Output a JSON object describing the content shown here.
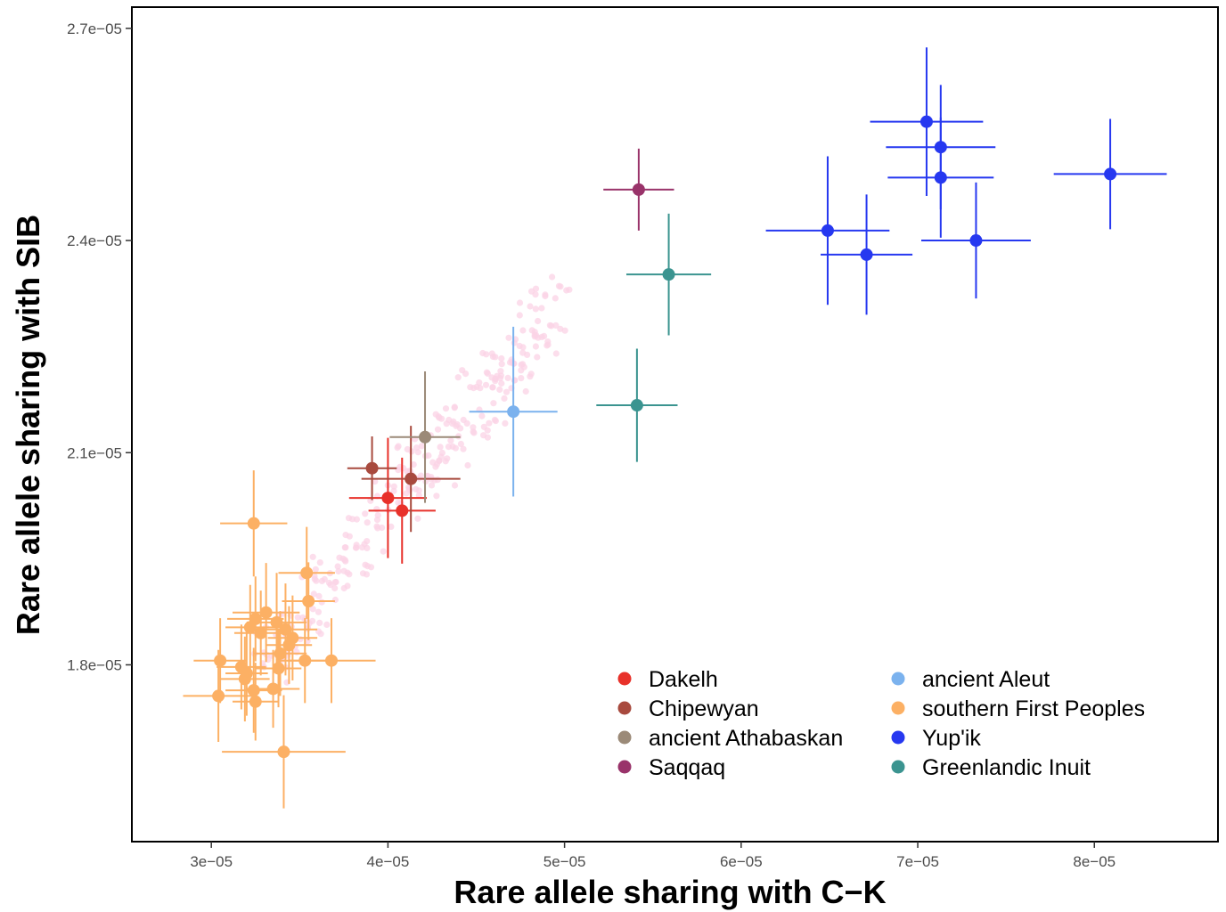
{
  "chart_data": {
    "type": "scatter",
    "xlabel": "Rare allele sharing with C−K",
    "ylabel": "Rare allele sharing with SIB",
    "xlim": [
      2.55e-05,
      8.7e-05
    ],
    "ylim": [
      1.55e-05,
      2.73e-05
    ],
    "x_ticks": [
      {
        "value": 3e-05,
        "label": "3e−05"
      },
      {
        "value": 4e-05,
        "label": "4e−05"
      },
      {
        "value": 5e-05,
        "label": "5e−05"
      },
      {
        "value": 6e-05,
        "label": "6e−05"
      },
      {
        "value": 7e-05,
        "label": "7e−05"
      },
      {
        "value": 8e-05,
        "label": "8e−05"
      }
    ],
    "y_ticks": [
      {
        "value": 1.8e-05,
        "label": "1.8e−05"
      },
      {
        "value": 2.1e-05,
        "label": "2.1e−05"
      },
      {
        "value": 2.4e-05,
        "label": "2.4e−05"
      },
      {
        "value": 2.7e-05,
        "label": "2.7e−05"
      }
    ],
    "grid": false,
    "legend_position": "bottom-right",
    "background_cloud": {
      "color": "#fbd3e6",
      "description_points_count": 300,
      "trend": [
        [
          3.3e-05,
          1.8e-05
        ],
        [
          4.95e-05,
          2.31e-05
        ]
      ]
    },
    "series": [
      {
        "name": "Dakelh",
        "color": "#e8312a",
        "points": [
          {
            "x": 4e-05,
            "y": 2.036e-05,
            "xerr": 2.2e-06,
            "yerr": 8.5e-07
          },
          {
            "x": 4.08e-05,
            "y": 2.018e-05,
            "xerr": 1.9e-06,
            "yerr": 7.5e-07
          }
        ]
      },
      {
        "name": "Chipewyan",
        "color": "#a84a3e",
        "points": [
          {
            "x": 3.91e-05,
            "y": 2.078e-05,
            "xerr": 1.4e-06,
            "yerr": 4.5e-07
          },
          {
            "x": 4.13e-05,
            "y": 2.063e-05,
            "xerr": 2.8e-06,
            "yerr": 7.5e-07
          }
        ]
      },
      {
        "name": "ancient Athabaskan",
        "color": "#9b8a78",
        "points": [
          {
            "x": 4.21e-05,
            "y": 2.122e-05,
            "xerr": 2e-06,
            "yerr": 9.3e-07
          }
        ]
      },
      {
        "name": "Saqqaq",
        "color": "#99336a",
        "points": [
          {
            "x": 5.42e-05,
            "y": 2.472e-05,
            "xerr": 2e-06,
            "yerr": 5.8e-07
          }
        ]
      },
      {
        "name": "ancient Aleut",
        "color": "#7bb2ee",
        "points": [
          {
            "x": 4.71e-05,
            "y": 2.158e-05,
            "xerr": 2.5e-06,
            "yerr": 1.2e-06
          }
        ]
      },
      {
        "name": "southern First Peoples",
        "color": "#fcb064",
        "points": [
          {
            "x": 3.24e-05,
            "y": 2e-05,
            "xerr": 1.9e-06,
            "yerr": 7.5e-07
          },
          {
            "x": 3.54e-05,
            "y": 1.93e-05,
            "xerr": 1.6e-06,
            "yerr": 6.5e-07
          },
          {
            "x": 3.55e-05,
            "y": 1.89e-05,
            "xerr": 1.5e-06,
            "yerr": 5.5e-07
          },
          {
            "x": 3.31e-05,
            "y": 1.874e-05,
            "xerr": 1.9e-06,
            "yerr": 7e-07
          },
          {
            "x": 3.25e-05,
            "y": 1.865e-05,
            "xerr": 1.6e-06,
            "yerr": 6e-07
          },
          {
            "x": 3.22e-05,
            "y": 1.853e-05,
            "xerr": 1.4e-06,
            "yerr": 6e-07
          },
          {
            "x": 3.37e-05,
            "y": 1.86e-05,
            "xerr": 1.7e-06,
            "yerr": 7e-07
          },
          {
            "x": 3.42e-05,
            "y": 1.85e-05,
            "xerr": 1.8e-06,
            "yerr": 6.5e-07
          },
          {
            "x": 3.46e-05,
            "y": 1.838e-05,
            "xerr": 1.4e-06,
            "yerr": 6e-07
          },
          {
            "x": 3.28e-05,
            "y": 1.845e-05,
            "xerr": 1.5e-06,
            "yerr": 6e-07
          },
          {
            "x": 3.44e-05,
            "y": 1.828e-05,
            "xerr": 1.3e-06,
            "yerr": 5.5e-07
          },
          {
            "x": 3.05e-05,
            "y": 1.806e-05,
            "xerr": 1.5e-06,
            "yerr": 6e-07
          },
          {
            "x": 3.53e-05,
            "y": 1.806e-05,
            "xerr": 1.4e-06,
            "yerr": 6e-07
          },
          {
            "x": 3.68e-05,
            "y": 1.806e-05,
            "xerr": 2.5e-06,
            "yerr": 6e-07
          },
          {
            "x": 3.39e-05,
            "y": 1.816e-05,
            "xerr": 1.5e-06,
            "yerr": 6e-07
          },
          {
            "x": 3.17e-05,
            "y": 1.797e-05,
            "xerr": 1.4e-06,
            "yerr": 6e-07
          },
          {
            "x": 3.38e-05,
            "y": 1.795e-05,
            "xerr": 1.3e-06,
            "yerr": 5.5e-07
          },
          {
            "x": 3.2e-05,
            "y": 1.788e-05,
            "xerr": 1.2e-06,
            "yerr": 6e-07
          },
          {
            "x": 3.19e-05,
            "y": 1.78e-05,
            "xerr": 1.4e-06,
            "yerr": 6e-07
          },
          {
            "x": 3.35e-05,
            "y": 1.766e-05,
            "xerr": 1.5e-06,
            "yerr": 5.5e-07
          },
          {
            "x": 3.24e-05,
            "y": 1.764e-05,
            "xerr": 1.6e-06,
            "yerr": 6e-07
          },
          {
            "x": 3.04e-05,
            "y": 1.756e-05,
            "xerr": 2e-06,
            "yerr": 6.5e-07
          },
          {
            "x": 3.25e-05,
            "y": 1.748e-05,
            "xerr": 1.3e-06,
            "yerr": 5.5e-07
          },
          {
            "x": 3.41e-05,
            "y": 1.677e-05,
            "xerr": 3.5e-06,
            "yerr": 8e-07
          }
        ]
      },
      {
        "name": "Yup'ik",
        "color": "#2638f0",
        "points": [
          {
            "x": 6.49e-05,
            "y": 2.414e-05,
            "xerr": 3.5e-06,
            "yerr": 1.05e-06
          },
          {
            "x": 6.71e-05,
            "y": 2.38e-05,
            "xerr": 2.6e-06,
            "yerr": 8.5e-07
          },
          {
            "x": 7.05e-05,
            "y": 2.568e-05,
            "xerr": 3.2e-06,
            "yerr": 1.05e-06
          },
          {
            "x": 7.13e-05,
            "y": 2.532e-05,
            "xerr": 3.1e-06,
            "yerr": 8.8e-07
          },
          {
            "x": 7.13e-05,
            "y": 2.489e-05,
            "xerr": 3e-06,
            "yerr": 8.5e-07
          },
          {
            "x": 7.33e-05,
            "y": 2.4e-05,
            "xerr": 3.1e-06,
            "yerr": 8.2e-07
          },
          {
            "x": 8.09e-05,
            "y": 2.494e-05,
            "xerr": 3.2e-06,
            "yerr": 7.8e-07
          }
        ]
      },
      {
        "name": "Greenlandic Inuit",
        "color": "#3b9490",
        "points": [
          {
            "x": 5.59e-05,
            "y": 2.352e-05,
            "xerr": 2.4e-06,
            "yerr": 8.6e-07
          },
          {
            "x": 5.41e-05,
            "y": 2.167e-05,
            "xerr": 2.3e-06,
            "yerr": 8e-07
          }
        ]
      }
    ]
  }
}
